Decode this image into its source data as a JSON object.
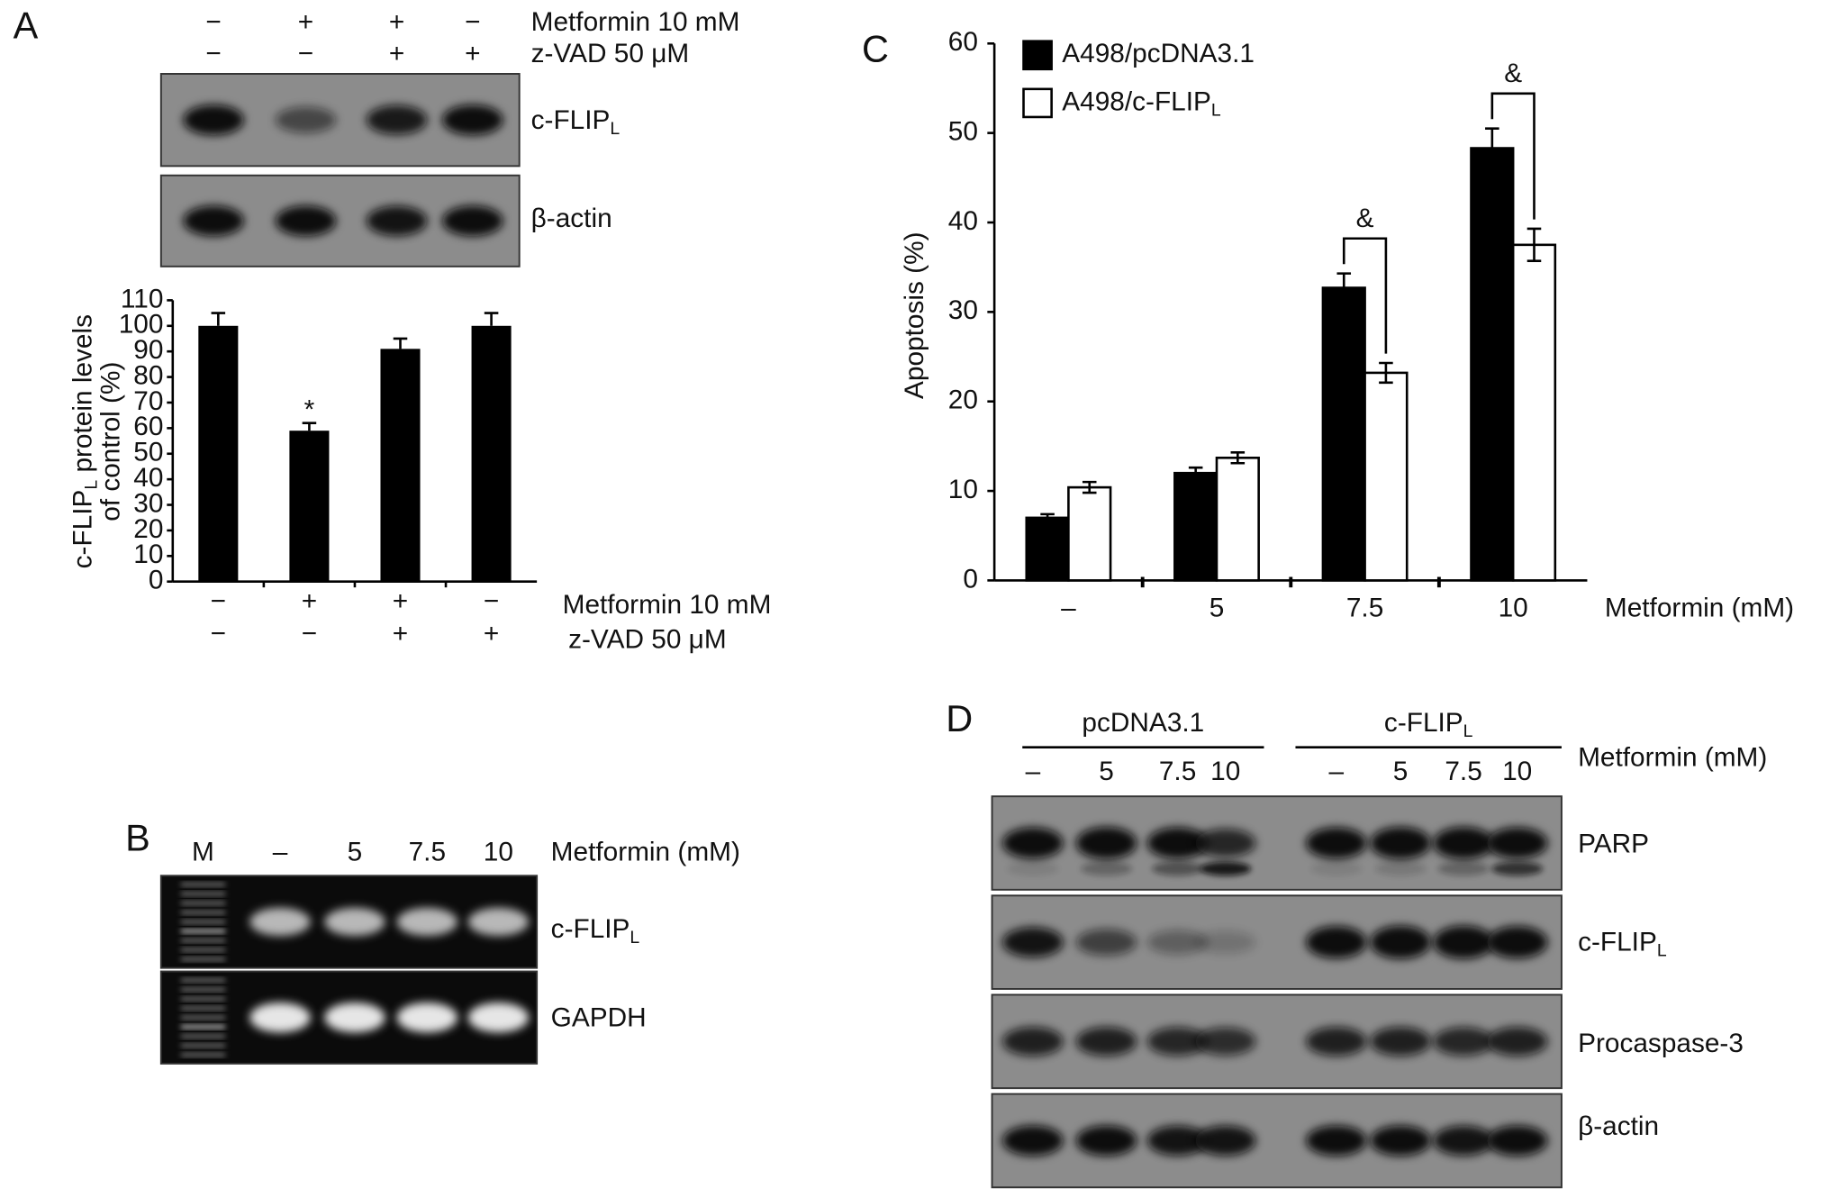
{
  "panel_labels": [
    "A",
    "B",
    "C",
    "D"
  ],
  "panel_a": {
    "treatment_rows": [
      {
        "label": "Metformin 10 mM",
        "signs": [
          "−",
          "+",
          "+",
          "−"
        ]
      },
      {
        "label": "z-VAD 50 μM",
        "signs": [
          "−",
          "−",
          "+",
          "+"
        ]
      }
    ],
    "blot_rows": [
      {
        "label": "c-FLIP",
        "sub": "L"
      },
      {
        "label": "β-actin"
      }
    ]
  },
  "panel_b": {
    "lane_labels": [
      "M",
      "–",
      "5",
      "7.5",
      "10"
    ],
    "lane_title": "Metformin (mM)",
    "blot_rows": [
      {
        "label": "c-FLIP",
        "sub": "L"
      },
      {
        "label": "GAPDH"
      }
    ]
  },
  "panel_d": {
    "groups": [
      {
        "name": "pcDNA3.1",
        "lanes": [
          "–",
          "5",
          "7.5",
          "10"
        ]
      },
      {
        "name": "c-FLIP",
        "sub": "L",
        "lanes": [
          "–",
          "5",
          "7.5",
          "10"
        ]
      }
    ],
    "lane_title": "Metformin (mM)",
    "blot_rows": [
      {
        "label": "PARP"
      },
      {
        "label": "c-FLIP",
        "sub": "L"
      },
      {
        "label": "Procaspase-3"
      },
      {
        "label": "β-actin"
      }
    ]
  },
  "chart_data": [
    {
      "type": "bar",
      "y_label": {
        "text": "c-FLIP",
        "sub": "L",
        "after": " protein levels",
        "line2": "of control (%)"
      },
      "categories": [
        null,
        null,
        null,
        null
      ],
      "values": [
        100,
        59,
        91,
        100
      ],
      "errors": [
        5,
        3,
        4,
        5
      ],
      "color": "#000000",
      "bar_annotations": [
        null,
        "*",
        null,
        null
      ],
      "ylim": [
        0,
        110
      ],
      "yticks": [
        0,
        10,
        20,
        30,
        40,
        50,
        60,
        70,
        80,
        90,
        100,
        110
      ],
      "treatment_rows": [
        {
          "label": "Metformin 10 mM",
          "signs": [
            "−",
            "+",
            "+",
            "−"
          ]
        },
        {
          "label": "z-VAD 50 μM",
          "signs": [
            "−",
            "−",
            "+",
            "+"
          ]
        }
      ]
    },
    {
      "type": "grouped_bar",
      "y_label": "Apoptosis (%)",
      "x_label": "Metformin (mM)",
      "categories": [
        "–",
        "5",
        "7.5",
        "10"
      ],
      "series": [
        {
          "name": "A498/pcDNA3.1",
          "color": "#000000",
          "values": [
            7,
            12,
            32.7,
            48.3
          ],
          "errors": [
            0.4,
            0.6,
            1.6,
            2.2
          ]
        },
        {
          "name": "A498/c-FLIP",
          "name_sub": "L",
          "color": "#ffffff",
          "values": [
            10.4,
            13.7,
            23.2,
            37.5
          ],
          "errors": [
            0.6,
            0.6,
            1.1,
            1.8
          ]
        }
      ],
      "brackets": [
        null,
        null,
        "&",
        "&"
      ],
      "ylim": [
        0,
        60
      ],
      "yticks": [
        0,
        10,
        20,
        30,
        40,
        50,
        60
      ]
    }
  ]
}
